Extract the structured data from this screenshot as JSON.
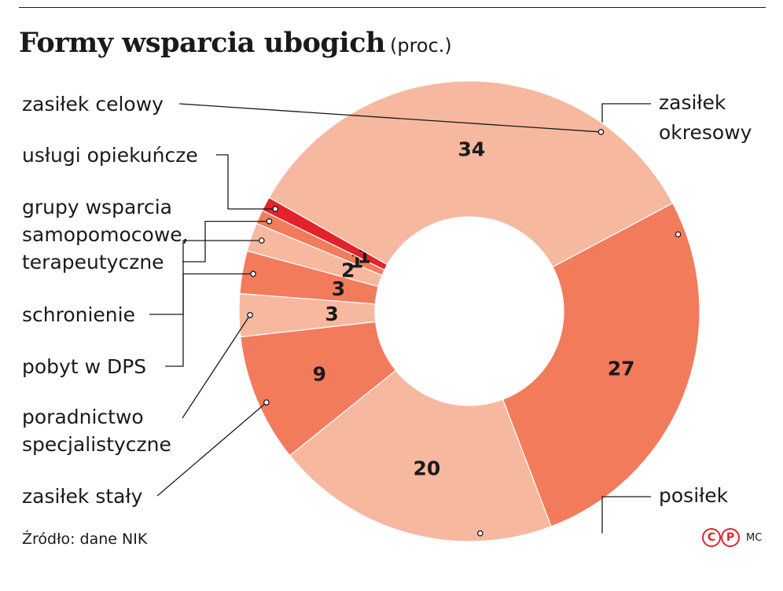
{
  "chart_data": {
    "type": "pie",
    "donut": true,
    "title": "Formy wsparcia ubogich",
    "unit": "(proc.)",
    "slices": [
      {
        "label": "zasiłek okresowy",
        "value": 27,
        "color": "#f27b5c"
      },
      {
        "label": "posiłek",
        "value": 20,
        "color": "#f7b8a0"
      },
      {
        "label": "zasiłek stały",
        "value": 9,
        "color": "#f27b5c"
      },
      {
        "label": "poradnictwo specjalistyczne",
        "value": 3,
        "color": "#f7b8a0"
      },
      {
        "label": "pobyt w DPS",
        "value": 3,
        "color": "#f27b5c"
      },
      {
        "label": "schronienie",
        "value": 2,
        "color": "#f7b8a0"
      },
      {
        "label": "grupy wsparcia samopomocowe, terapeutyczne",
        "value": 1,
        "color": "#f27b5c"
      },
      {
        "label": "usługi opiekuńcze",
        "value": 1,
        "color": "#e3222b"
      },
      {
        "label": "zasiłek celowy",
        "value": 34,
        "color": "#f7b8a0"
      }
    ],
    "source": "Źródło: dane NIK"
  },
  "credit": {
    "logo_text": "CP",
    "author": "MC"
  }
}
